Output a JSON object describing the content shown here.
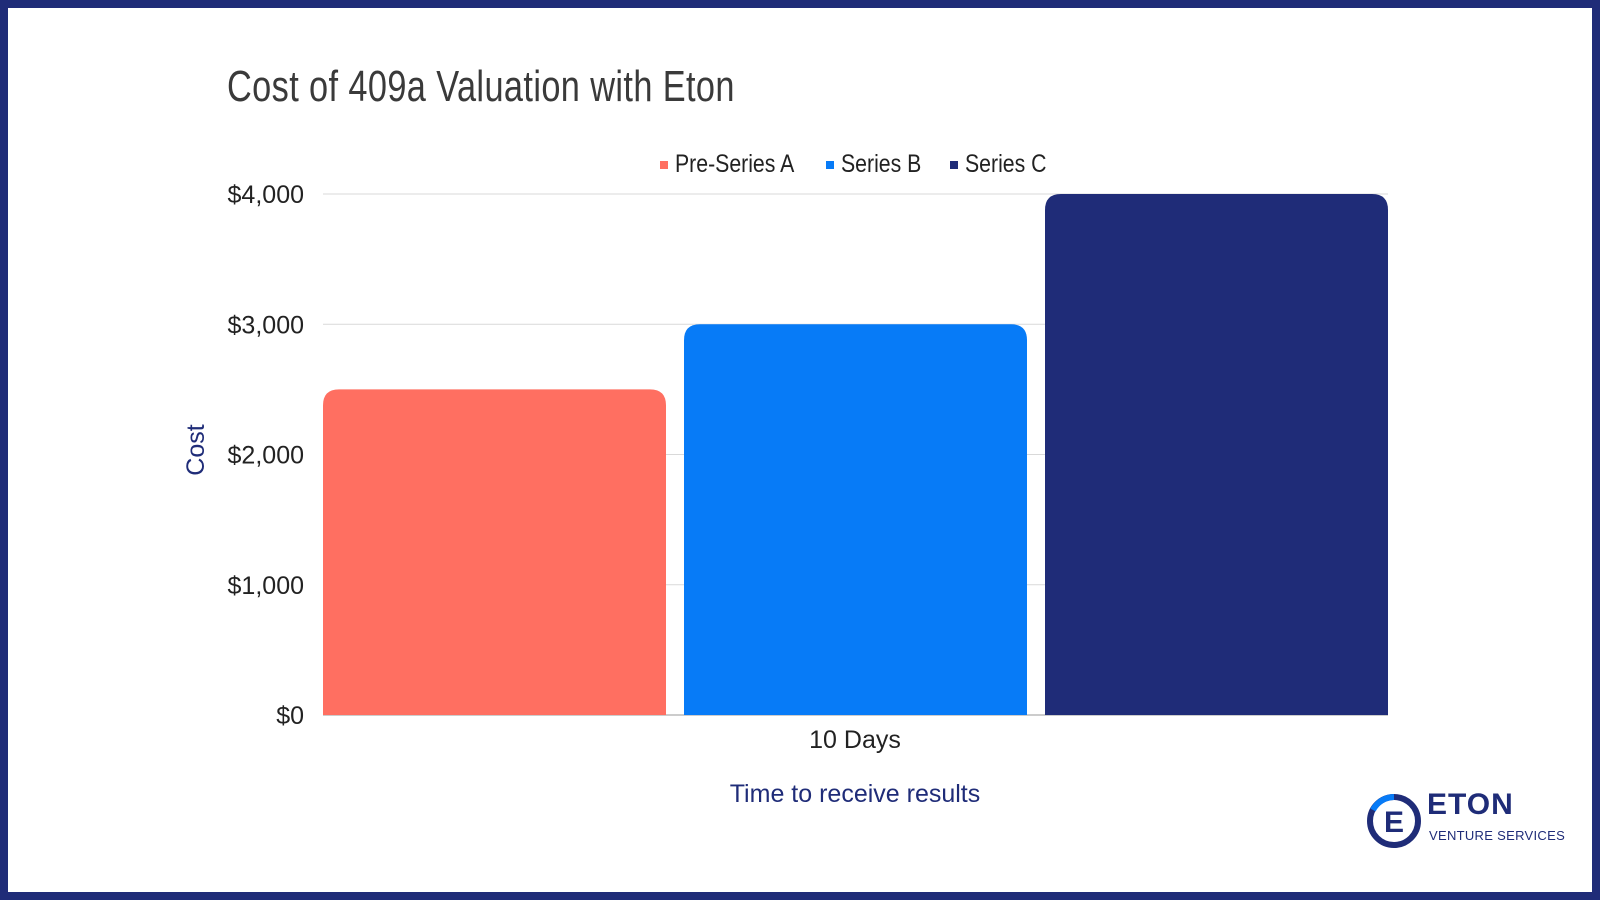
{
  "chart_data": {
    "type": "bar",
    "title": "Cost of 409a Valuation with Eton",
    "categories": [
      "10 Days"
    ],
    "series": [
      {
        "name": "Pre-Series A",
        "values": [
          2500
        ],
        "color": "#ff6f61"
      },
      {
        "name": "Series B",
        "values": [
          3000
        ],
        "color": "#077bf7"
      },
      {
        "name": "Series C",
        "values": [
          4000
        ],
        "color": "#1f2c78"
      }
    ],
    "xlabel": "Time to receive results",
    "ylabel": "Cost",
    "ylim": [
      0,
      4000
    ],
    "yticks": [
      0,
      1000,
      2000,
      3000,
      4000
    ],
    "ytick_labels": [
      "$0",
      "$1,000",
      "$2,000",
      "$3,000",
      "$4,000"
    ],
    "grid": true,
    "legend_position": "top"
  },
  "logo": {
    "name": "ETON",
    "tagline": "VENTURE SERVICES",
    "colors": {
      "primary": "#1f2c78",
      "accent": "#077bf7"
    }
  },
  "frame_color": "#1f2c78"
}
